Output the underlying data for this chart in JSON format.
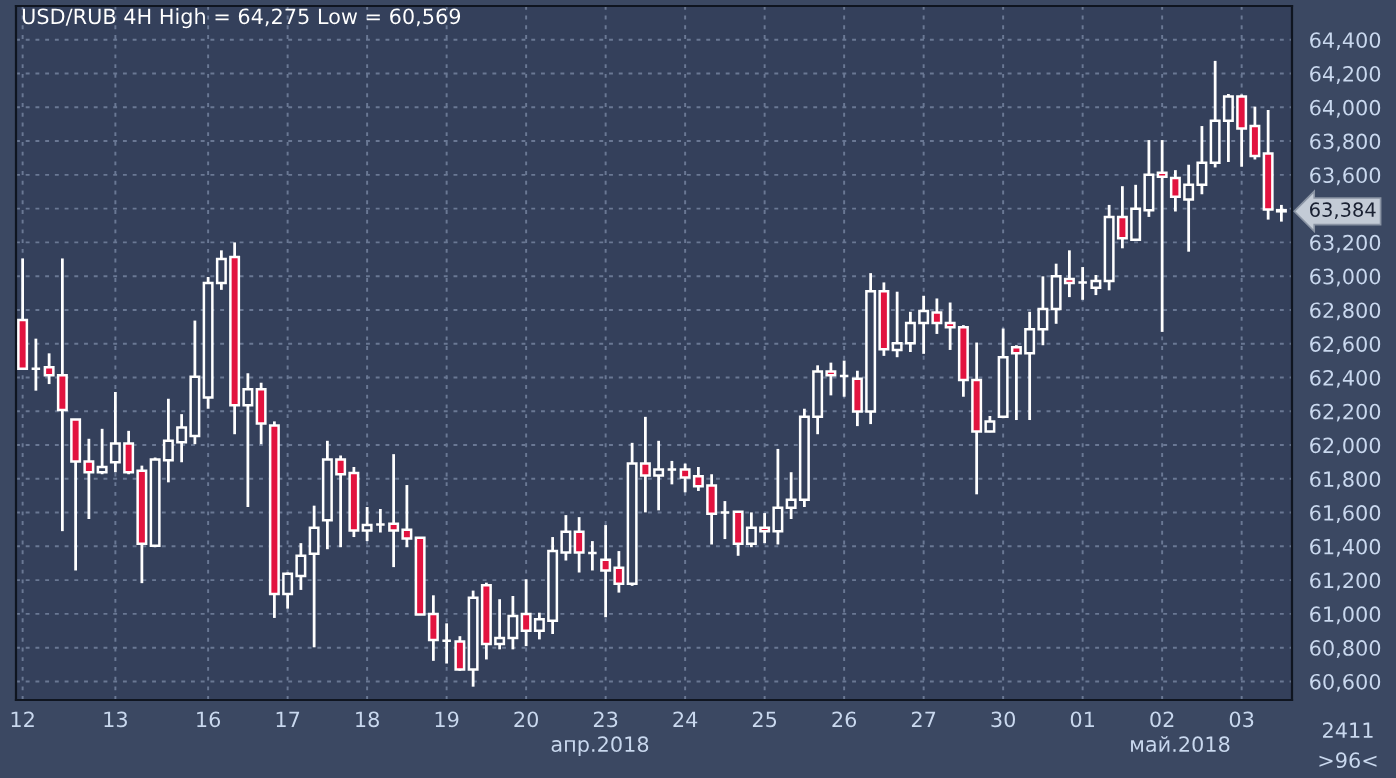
{
  "chart_data": {
    "type": "candlestick",
    "title": "USD/RUB 4H High = 64,275 Low = 60,569",
    "categories": [
      "12",
      null,
      null,
      null,
      null,
      null,
      null,
      "13",
      null,
      null,
      null,
      null,
      null,
      null,
      "16",
      null,
      null,
      null,
      null,
      null,
      "17",
      null,
      null,
      null,
      null,
      null,
      "18",
      null,
      null,
      null,
      null,
      null,
      "19",
      null,
      null,
      null,
      null,
      null,
      "20",
      null,
      null,
      null,
      null,
      null,
      "23",
      null,
      null,
      null,
      null,
      null,
      "24",
      null,
      null,
      null,
      null,
      null,
      "25",
      null,
      null,
      null,
      null,
      null,
      "26",
      null,
      null,
      null,
      null,
      null,
      "27",
      null,
      null,
      null,
      null,
      null,
      "30",
      null,
      null,
      null,
      null,
      null,
      "01",
      null,
      null,
      null,
      null,
      null,
      "02",
      null,
      null,
      null,
      null,
      null,
      "03",
      null,
      null,
      null
    ],
    "ohlc": [
      [
        62741,
        63105,
        62452,
        62452
      ],
      [
        62452,
        62630,
        62322,
        62452
      ],
      [
        62460,
        62543,
        62361,
        62413
      ],
      [
        62413,
        63105,
        61490,
        62207
      ],
      [
        62151,
        62151,
        61257,
        61902
      ],
      [
        61902,
        62037,
        61562,
        61839
      ],
      [
        61839,
        62096,
        61827,
        61870
      ],
      [
        61898,
        62314,
        61839,
        62009
      ],
      [
        62009,
        62084,
        61827,
        61839
      ],
      [
        61847,
        61878,
        61182,
        61415
      ],
      [
        61403,
        61926,
        61395,
        61914
      ],
      [
        61910,
        62274,
        61779,
        62025
      ],
      [
        62017,
        62183,
        61898,
        62104
      ],
      [
        62053,
        62737,
        62005,
        62405
      ],
      [
        62282,
        62995,
        62215,
        62959
      ],
      [
        62959,
        63153,
        62919,
        63102
      ],
      [
        63114,
        63200,
        62064,
        62235
      ],
      [
        62235,
        62425,
        61633,
        62330
      ],
      [
        62330,
        62369,
        62005,
        62128
      ],
      [
        62116,
        62140,
        60976,
        61118
      ],
      [
        61118,
        61245,
        61031,
        61237
      ],
      [
        61225,
        61419,
        61142,
        61344
      ],
      [
        61356,
        61641,
        60802,
        61510
      ],
      [
        61554,
        62025,
        61383,
        61914
      ],
      [
        61914,
        61938,
        61395,
        61827
      ],
      [
        61835,
        61870,
        61455,
        61494
      ],
      [
        61494,
        61633,
        61431,
        61526
      ],
      [
        61530,
        61621,
        61482,
        61530
      ],
      [
        61534,
        61946,
        61277,
        61494
      ],
      [
        61498,
        61763,
        61395,
        61447
      ],
      [
        61451,
        61451,
        60996,
        60996
      ],
      [
        61000,
        61110,
        60722,
        60845
      ],
      [
        60841,
        60944,
        60706,
        60841
      ],
      [
        60837,
        60868,
        60663,
        60671
      ],
      [
        60671,
        61138,
        60569,
        61095
      ],
      [
        61170,
        61185,
        60730,
        60821
      ],
      [
        60821,
        61087,
        60790,
        60857
      ],
      [
        60857,
        61106,
        60790,
        60987
      ],
      [
        60999,
        61205,
        60809,
        60900
      ],
      [
        60900,
        61007,
        60849,
        60968
      ],
      [
        60960,
        61455,
        60881,
        61372
      ],
      [
        61364,
        61585,
        61316,
        61487
      ],
      [
        61487,
        61573,
        61245,
        61364
      ],
      [
        61360,
        61431,
        61257,
        61360
      ],
      [
        61320,
        61526,
        60980,
        61257
      ],
      [
        61273,
        61372,
        61126,
        61178
      ],
      [
        61178,
        62013,
        61166,
        61890
      ],
      [
        61890,
        62167,
        61601,
        61819
      ],
      [
        61819,
        62025,
        61613,
        61855
      ],
      [
        61855,
        61906,
        61767,
        61855
      ],
      [
        61855,
        61890,
        61720,
        61807
      ],
      [
        61815,
        61870,
        61728,
        61756
      ],
      [
        61760,
        61827,
        61411,
        61593
      ],
      [
        61601,
        61668,
        61443,
        61601
      ],
      [
        61605,
        61605,
        61344,
        61415
      ],
      [
        61415,
        61601,
        61395,
        61510
      ],
      [
        61510,
        61597,
        61419,
        61490
      ],
      [
        61490,
        61977,
        61411,
        61629
      ],
      [
        61629,
        61839,
        61562,
        61676
      ],
      [
        61676,
        62215,
        61633,
        62167
      ],
      [
        62167,
        62472,
        62064,
        62436
      ],
      [
        62436,
        62488,
        62294,
        62413
      ],
      [
        62409,
        62500,
        62286,
        62409
      ],
      [
        62393,
        62440,
        62112,
        62199
      ],
      [
        62199,
        63018,
        62124,
        62911
      ],
      [
        62911,
        62963,
        62528,
        62567
      ],
      [
        62563,
        62908,
        62520,
        62603
      ],
      [
        62603,
        62789,
        62551,
        62722
      ],
      [
        62722,
        62884,
        62540,
        62793
      ],
      [
        62785,
        62868,
        62658,
        62722
      ],
      [
        62722,
        62844,
        62563,
        62698
      ],
      [
        62698,
        62710,
        62286,
        62385
      ],
      [
        62385,
        62607,
        61708,
        62080
      ],
      [
        62080,
        62172,
        62076,
        62140
      ],
      [
        62167,
        62690,
        62159,
        62520
      ],
      [
        62579,
        62591,
        62148,
        62543
      ],
      [
        62543,
        62789,
        62148,
        62686
      ],
      [
        62686,
        62999,
        62591,
        62805
      ],
      [
        62805,
        63074,
        62718,
        62999
      ],
      [
        62983,
        63153,
        62876,
        62959
      ],
      [
        62963,
        63054,
        62860,
        62963
      ],
      [
        62931,
        63007,
        62888,
        62971
      ],
      [
        62971,
        63422,
        62916,
        63351
      ],
      [
        63351,
        63533,
        63165,
        63224
      ],
      [
        63216,
        63541,
        63208,
        63399
      ],
      [
        63391,
        63806,
        63351,
        63600
      ],
      [
        63612,
        63806,
        62670,
        63589
      ],
      [
        63581,
        63628,
        63383,
        63470
      ],
      [
        63454,
        63660,
        63145,
        63541
      ],
      [
        63541,
        63889,
        63485,
        63672
      ],
      [
        63672,
        64275,
        63644,
        63921
      ],
      [
        63921,
        64079,
        63676,
        64064
      ],
      [
        64064,
        64076,
        63648,
        63874
      ],
      [
        63889,
        64004,
        63691,
        63711
      ],
      [
        63727,
        63984,
        63335,
        63395
      ],
      [
        63391,
        63422,
        63323,
        63384
      ]
    ],
    "ylim": [
      60490,
      64600
    ],
    "yticks": [
      {
        "value": 60600,
        "label": "60,600"
      },
      {
        "value": 60800,
        "label": "60,800"
      },
      {
        "value": 61000,
        "label": "61,000"
      },
      {
        "value": 61200,
        "label": "61,200"
      },
      {
        "value": 61400,
        "label": "61,400"
      },
      {
        "value": 61600,
        "label": "61,600"
      },
      {
        "value": 61800,
        "label": "61,800"
      },
      {
        "value": 62000,
        "label": "62,000"
      },
      {
        "value": 62200,
        "label": "62,200"
      },
      {
        "value": 62400,
        "label": "62,400"
      },
      {
        "value": 62600,
        "label": "62,600"
      },
      {
        "value": 62800,
        "label": "62,800"
      },
      {
        "value": 63000,
        "label": "63,000"
      },
      {
        "value": 63200,
        "label": "63,200"
      },
      {
        "value": 63400,
        "label": null
      },
      {
        "value": 63600,
        "label": "63,600"
      },
      {
        "value": 63800,
        "label": "63,800"
      },
      {
        "value": 64000,
        "label": "64,000"
      },
      {
        "value": 64200,
        "label": "64,200"
      },
      {
        "value": 64400,
        "label": "64,400"
      }
    ],
    "grid": true,
    "annotations": [
      "апр.2018",
      "май.2018",
      "2411",
      ">96<",
      "63,384"
    ]
  }
}
